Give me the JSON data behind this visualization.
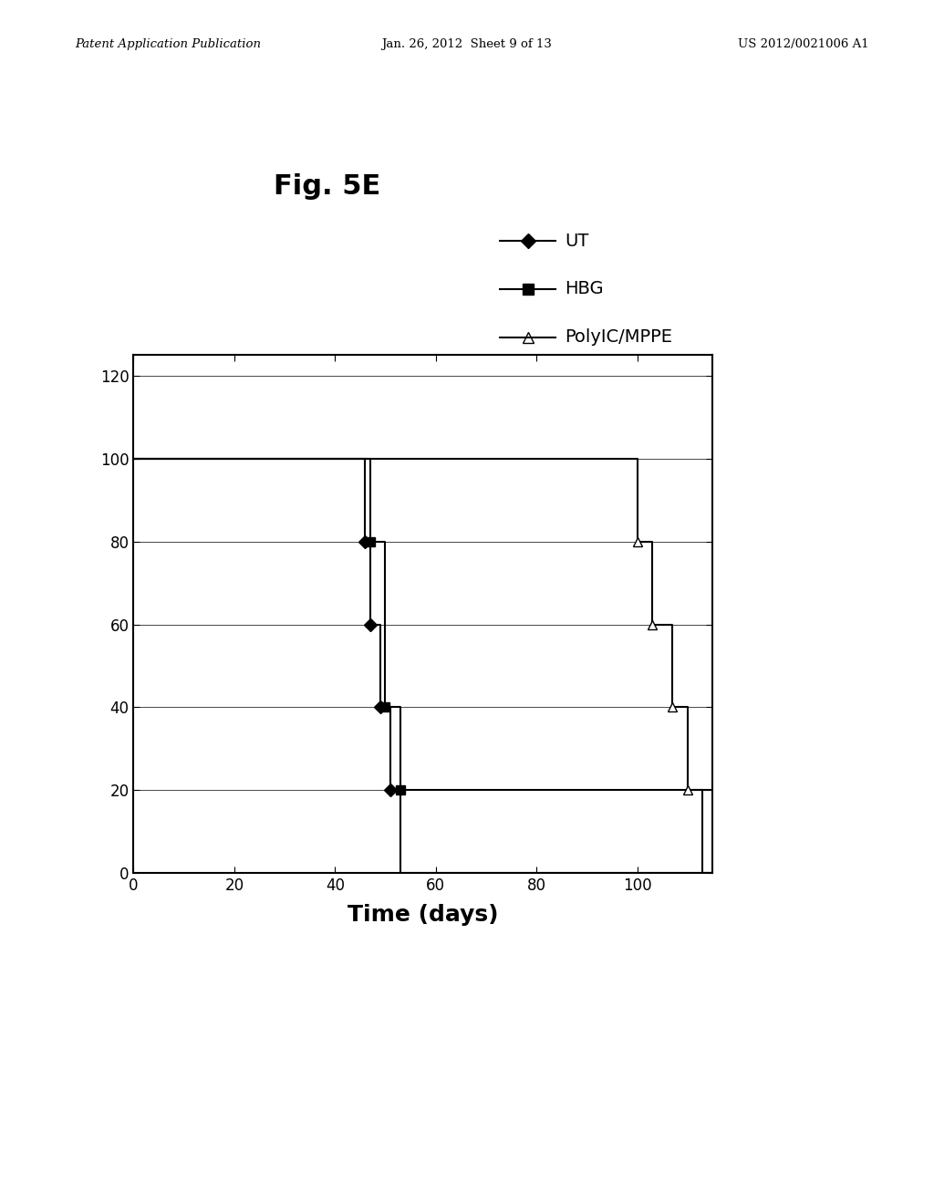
{
  "title": "Fig. 5E",
  "xlabel": "Time (days)",
  "xlim": [
    0,
    115
  ],
  "ylim": [
    0,
    125
  ],
  "xticks": [
    0,
    20,
    40,
    60,
    80,
    100
  ],
  "yticks": [
    0,
    20,
    40,
    60,
    80,
    100,
    120
  ],
  "header_left": "Patent Application Publication",
  "header_center": "Jan. 26, 2012  Sheet 9 of 13",
  "header_right": "US 2012/0021006 A1",
  "ut_x": [
    0,
    46,
    46,
    47,
    47,
    49,
    49,
    51,
    51,
    53,
    53,
    115
  ],
  "ut_y": [
    100,
    100,
    80,
    80,
    60,
    60,
    40,
    40,
    20,
    20,
    0,
    0
  ],
  "ut_mkx": [
    46,
    47,
    49,
    51
  ],
  "ut_mky": [
    80,
    60,
    40,
    20
  ],
  "hbg_x": [
    0,
    47,
    47,
    50,
    50,
    53,
    53,
    115
  ],
  "hbg_y": [
    100,
    100,
    80,
    80,
    40,
    40,
    20,
    20
  ],
  "hbg_mkx": [
    47,
    50,
    53
  ],
  "hbg_mky": [
    80,
    40,
    20
  ],
  "polyic_x": [
    0,
    100,
    100,
    103,
    103,
    107,
    107,
    110,
    110,
    113,
    113,
    115
  ],
  "polyic_y": [
    100,
    100,
    80,
    80,
    60,
    60,
    40,
    40,
    20,
    20,
    0,
    0
  ],
  "polyic_mkx": [
    100,
    103,
    107,
    110
  ],
  "polyic_mky": [
    80,
    60,
    40,
    20
  ],
  "line_color": "#000000",
  "background_color": "#ffffff",
  "legend_labels": [
    "UT",
    "HBG",
    "PolyIC/MPPE"
  ],
  "legend_markers": [
    "D",
    "s",
    "^"
  ],
  "legend_fillstyle": [
    "full",
    "full",
    "none"
  ]
}
